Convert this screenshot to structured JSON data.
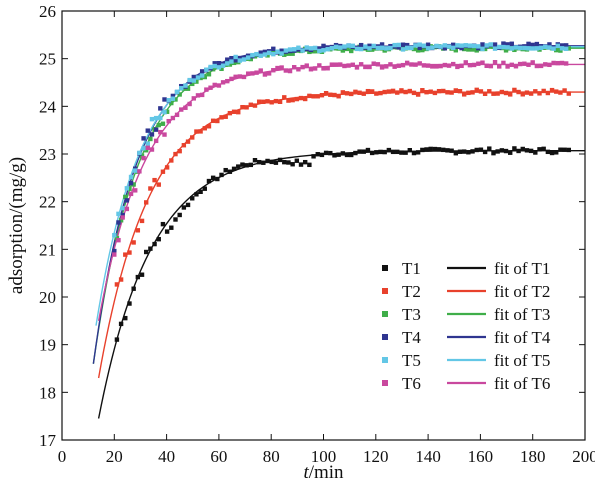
{
  "chart_data": {
    "type": "scatter",
    "xlabel_italic": "t",
    "xlabel_rest": "/min",
    "ylabel": "adsorption/(mg/g)",
    "xlim": [
      0,
      200
    ],
    "ylim": [
      17,
      26
    ],
    "x_ticks": [
      0,
      20,
      40,
      60,
      80,
      100,
      120,
      140,
      160,
      180,
      200
    ],
    "y_ticks": [
      17,
      18,
      19,
      20,
      21,
      22,
      23,
      24,
      25,
      26
    ],
    "grid": false,
    "legend_position": "bottom-right",
    "series": [
      {
        "name": "T1",
        "fit_name": "fit of T1",
        "color": "#111111",
        "qe": 23.07,
        "k": 0.05,
        "x0": 14,
        "q0": 17.45,
        "y_min": 17.45,
        "y_max": 23.15
      },
      {
        "name": "T2",
        "fit_name": "fit of T2",
        "color": "#e8412c",
        "qe": 24.3,
        "k": 0.052,
        "x0": 14,
        "q0": 18.3,
        "y_min": 18.3,
        "y_max": 24.35
      },
      {
        "name": "T3",
        "fit_name": "fit of T3",
        "color": "#3fae49",
        "qe": 25.22,
        "k": 0.058,
        "x0": 12,
        "q0": 18.6,
        "y_min": 18.6,
        "y_max": 25.3
      },
      {
        "name": "T4",
        "fit_name": "fit of T4",
        "color": "#2f3590",
        "qe": 25.27,
        "k": 0.06,
        "x0": 12,
        "q0": 18.6,
        "y_min": 18.6,
        "y_max": 25.35
      },
      {
        "name": "T5",
        "fit_name": "fit of T5",
        "color": "#63c7e6",
        "qe": 25.25,
        "k": 0.058,
        "x0": 13,
        "q0": 19.4,
        "y_min": 19.4,
        "y_max": 25.3
      },
      {
        "name": "T6",
        "fit_name": "fit of T6",
        "color": "#c9489e",
        "qe": 24.88,
        "k": 0.055,
        "x0": 14,
        "q0": 19.5,
        "y_min": 19.5,
        "y_max": 24.95
      }
    ]
  }
}
